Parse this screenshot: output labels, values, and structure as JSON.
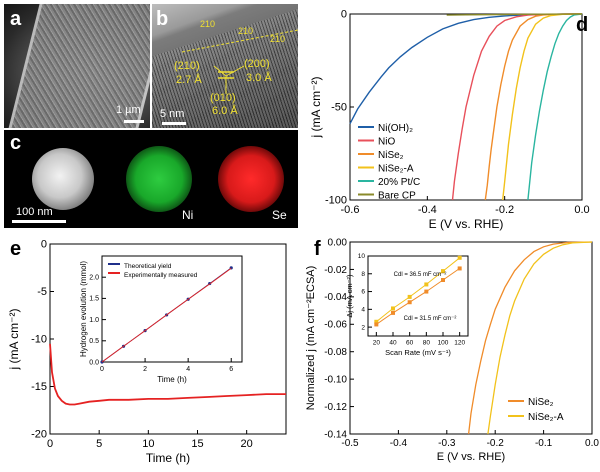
{
  "panels": {
    "a": {
      "label": "a",
      "scale_bar": "1 µm"
    },
    "b": {
      "label": "b",
      "scale_bar": "5 nm",
      "annotations": [
        "210",
        "210",
        "210",
        "(210)",
        "2.7 Å",
        "(200)",
        "3.0 Å",
        "(010)",
        "6.0 Å"
      ]
    },
    "c": {
      "label": "c",
      "scale_bar": "100 nm",
      "maps": [
        "Ni",
        "Se"
      ]
    },
    "d": {
      "label": "d"
    },
    "e": {
      "label": "e"
    },
    "f": {
      "label": "f"
    }
  },
  "colors": {
    "NiOH2": "#1f5fa8",
    "NiO": "#e8505b",
    "NiSe2": "#f08c2a",
    "NiSe2A": "#f2c21b",
    "PtC": "#2ab5a0",
    "BareCP": "#8a8a2a",
    "red": "#e52222",
    "annot": "#f0e030"
  },
  "chart_data": [
    {
      "type": "line",
      "panel": "d",
      "xlabel": "E (V vs. RHE)",
      "ylabel": "j (mA cm⁻²)",
      "xlim": [
        -0.6,
        0.0
      ],
      "ylim": [
        -100,
        0
      ],
      "xticks": [
        "-0.6",
        "-0.4",
        "-0.2",
        "0.0"
      ],
      "yticks": [
        "0",
        "-50",
        "-100"
      ],
      "legend_position": "bottom-left",
      "series": [
        {
          "name": "Ni(OH)₂",
          "color": "#1f5fa8",
          "x": [
            -0.6,
            -0.58,
            -0.55,
            -0.52,
            -0.5,
            -0.47,
            -0.44,
            -0.4,
            -0.36,
            -0.32,
            -0.28,
            -0.24,
            -0.2,
            -0.15,
            -0.1,
            -0.05,
            0.0
          ],
          "y": [
            -59,
            -51,
            -42,
            -34,
            -29,
            -23,
            -18,
            -12.5,
            -8,
            -5,
            -3,
            -1.8,
            -1,
            -0.5,
            -0.2,
            -0.05,
            0
          ]
        },
        {
          "name": "NiO",
          "color": "#e8505b",
          "x": [
            -0.335,
            -0.33,
            -0.32,
            -0.31,
            -0.3,
            -0.28,
            -0.26,
            -0.24,
            -0.22,
            -0.2,
            -0.17,
            -0.14,
            -0.1,
            -0.05,
            0.0
          ],
          "y": [
            -100,
            -90,
            -75,
            -62,
            -50,
            -33,
            -20,
            -12,
            -6.5,
            -3.5,
            -1.5,
            -0.6,
            -0.2,
            -0.05,
            0
          ]
        },
        {
          "name": "NiSe₂",
          "color": "#f08c2a",
          "x": [
            -0.25,
            -0.245,
            -0.24,
            -0.235,
            -0.23,
            -0.22,
            -0.21,
            -0.2,
            -0.19,
            -0.18,
            -0.16,
            -0.14,
            -0.12,
            -0.1,
            -0.05,
            0.0
          ],
          "y": [
            -100,
            -92,
            -82,
            -73,
            -65,
            -50,
            -38,
            -28,
            -20,
            -14,
            -6.5,
            -3,
            -1.2,
            -0.5,
            -0.05,
            0
          ]
        },
        {
          "name": "NiSe₂-A",
          "color": "#f2c21b",
          "x": [
            -0.205,
            -0.2,
            -0.195,
            -0.19,
            -0.18,
            -0.17,
            -0.16,
            -0.15,
            -0.14,
            -0.12,
            -0.1,
            -0.08,
            -0.05,
            0.0
          ],
          "y": [
            -100,
            -90,
            -80,
            -70,
            -54,
            -40,
            -29,
            -20,
            -13,
            -5.5,
            -2.2,
            -0.8,
            -0.15,
            0
          ]
        },
        {
          "name": "20% Pt/C",
          "color": "#2ab5a0",
          "x": [
            -0.14,
            -0.135,
            -0.13,
            -0.12,
            -0.11,
            -0.1,
            -0.09,
            -0.08,
            -0.07,
            -0.06,
            -0.05,
            -0.04,
            -0.03,
            -0.02,
            0.0
          ],
          "y": [
            -100,
            -90,
            -80,
            -65,
            -52,
            -41,
            -31,
            -23,
            -16,
            -10.5,
            -6.5,
            -3.5,
            -1.6,
            -0.5,
            0
          ]
        },
        {
          "name": "Bare CP",
          "color": "#8a8a2a",
          "x": [
            -0.35,
            -0.3,
            -0.25,
            -0.2,
            -0.15,
            -0.1,
            -0.05,
            0.0
          ],
          "y": [
            -0.6,
            -0.45,
            -0.35,
            -0.25,
            -0.18,
            -0.1,
            -0.05,
            0
          ]
        }
      ]
    },
    {
      "type": "line",
      "panel": "e",
      "xlabel": "Time (h)",
      "ylabel": "j (mA cm⁻²)",
      "xlim": [
        0,
        24
      ],
      "ylim": [
        -20,
        0
      ],
      "xticks": [
        "0",
        "5",
        "10",
        "15",
        "20"
      ],
      "yticks": [
        "0",
        "-5",
        "-10",
        "-15",
        "-20"
      ],
      "series": [
        {
          "name": "",
          "color": "#e52222",
          "x": [
            0,
            0.2,
            0.5,
            0.8,
            1.2,
            1.6,
            2,
            2.5,
            3,
            4,
            5,
            6,
            8,
            10,
            12,
            14,
            16,
            18,
            20,
            22,
            24
          ],
          "y": [
            -10.5,
            -13.5,
            -15.2,
            -16.0,
            -16.5,
            -16.8,
            -16.9,
            -16.9,
            -16.8,
            -16.6,
            -16.5,
            -16.4,
            -16.4,
            -16.3,
            -16.3,
            -16.2,
            -16.1,
            -16.0,
            -15.9,
            -15.8,
            -15.8
          ]
        }
      ]
    },
    {
      "type": "line",
      "panel": "e-inset",
      "xlabel": "Time (h)",
      "ylabel": "Hydrogen evolution (mmol)",
      "xlim": [
        0,
        6.5
      ],
      "ylim": [
        0,
        2.5
      ],
      "xticks": [
        "0",
        "2",
        "4",
        "6"
      ],
      "yticks": [
        "0.0",
        "0.5",
        "1.0",
        "1.5",
        "2.0"
      ],
      "legend_position": "top-left",
      "series": [
        {
          "name": "Theoretical yield",
          "color": "#1f2f8a",
          "x": [
            0,
            1,
            2,
            3,
            4,
            5,
            6
          ],
          "y": [
            0,
            0.37,
            0.74,
            1.11,
            1.48,
            1.85,
            2.22
          ]
        },
        {
          "name": "Experimentally measured",
          "color": "#e52222",
          "x": [
            0,
            1,
            2,
            3,
            4,
            5,
            6
          ],
          "y": [
            0,
            0.37,
            0.74,
            1.11,
            1.48,
            1.84,
            2.21
          ]
        }
      ]
    },
    {
      "type": "line",
      "panel": "f",
      "xlabel": "E (V vs. RHE)",
      "ylabel": "Normalized j (mA cm⁻²ECSA)",
      "xlim": [
        -0.5,
        0.0
      ],
      "ylim": [
        -0.14,
        0.0
      ],
      "xticks": [
        "-0.5",
        "-0.4",
        "-0.3",
        "-0.2",
        "-0.1",
        "0.0"
      ],
      "yticks": [
        "0.00",
        "-0.02",
        "-0.04",
        "-0.06",
        "-0.08",
        "-0.10",
        "-0.12",
        "-0.14"
      ],
      "legend_position": "bottom-right",
      "series": [
        {
          "name": "NiSe₂",
          "color": "#f08c2a",
          "x": [
            -0.255,
            -0.25,
            -0.24,
            -0.23,
            -0.22,
            -0.21,
            -0.2,
            -0.18,
            -0.16,
            -0.14,
            -0.12,
            -0.1,
            -0.08,
            -0.05,
            0.0
          ],
          "y": [
            -0.14,
            -0.125,
            -0.104,
            -0.087,
            -0.072,
            -0.06,
            -0.049,
            -0.033,
            -0.021,
            -0.013,
            -0.007,
            -0.0035,
            -0.0015,
            -0.0003,
            0
          ]
        },
        {
          "name": "NiSe₂-A",
          "color": "#f2c21b",
          "x": [
            -0.215,
            -0.21,
            -0.2,
            -0.19,
            -0.18,
            -0.17,
            -0.16,
            -0.14,
            -0.12,
            -0.1,
            -0.08,
            -0.06,
            -0.04,
            0.0
          ],
          "y": [
            -0.14,
            -0.127,
            -0.104,
            -0.084,
            -0.068,
            -0.054,
            -0.043,
            -0.027,
            -0.016,
            -0.009,
            -0.0045,
            -0.002,
            -0.0006,
            0
          ]
        }
      ]
    },
    {
      "type": "scatter",
      "panel": "f-inset",
      "xlabel": "Scan Rate (mV s⁻¹)",
      "ylabel": "Δj (mA cm⁻²)",
      "xlim": [
        10,
        130
      ],
      "ylim": [
        1,
        10
      ],
      "xticks": [
        "20",
        "40",
        "60",
        "80",
        "100",
        "120"
      ],
      "yticks": [
        "2",
        "4",
        "6",
        "8",
        "10"
      ],
      "annotations": [
        "Cdl = 36.5 mF cm⁻²",
        "Cdl = 31.5 mF cm⁻²"
      ],
      "series": [
        {
          "name": "",
          "color": "#f2c21b",
          "x": [
            20,
            40,
            60,
            80,
            100,
            120
          ],
          "y": [
            2.6,
            4.1,
            5.4,
            6.8,
            8.3,
            9.8
          ]
        },
        {
          "name": "",
          "color": "#f08c2a",
          "x": [
            20,
            40,
            60,
            80,
            100,
            120
          ],
          "y": [
            2.3,
            3.6,
            4.8,
            6.0,
            7.3,
            8.6
          ]
        }
      ]
    }
  ]
}
